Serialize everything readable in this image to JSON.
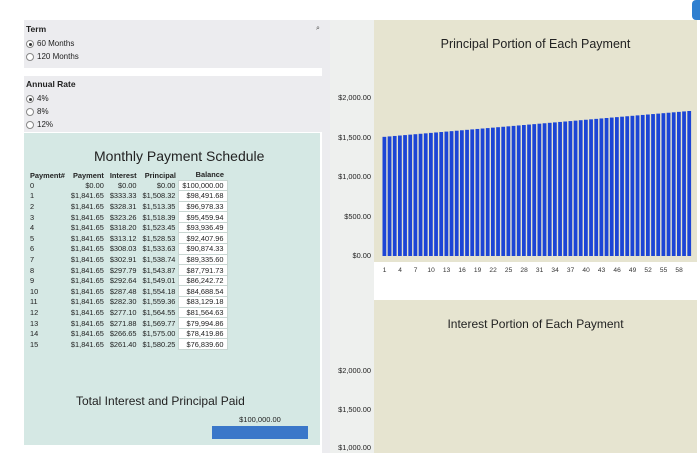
{
  "term": {
    "label": "Term",
    "options": [
      {
        "label": "60 Months",
        "selected": true
      },
      {
        "label": "120 Months",
        "selected": false
      }
    ]
  },
  "rate": {
    "label": "Annual Rate",
    "options": [
      {
        "label": "4%",
        "selected": true
      },
      {
        "label": "8%",
        "selected": false
      },
      {
        "label": "12%",
        "selected": false
      }
    ]
  },
  "schedule": {
    "title": "Monthly Payment Schedule",
    "columns": [
      "Payment#",
      "Payment",
      "Interest",
      "Principal",
      "Balance"
    ],
    "rows": [
      [
        "0",
        "$0.00",
        "$0.00",
        "$0.00",
        "$100,000.00"
      ],
      [
        "1",
        "$1,841.65",
        "$333.33",
        "$1,508.32",
        "$98,491.68"
      ],
      [
        "2",
        "$1,841.65",
        "$328.31",
        "$1,513.35",
        "$96,978.33"
      ],
      [
        "3",
        "$1,841.65",
        "$323.26",
        "$1,518.39",
        "$95,459.94"
      ],
      [
        "4",
        "$1,841.65",
        "$318.20",
        "$1,523.45",
        "$93,936.49"
      ],
      [
        "5",
        "$1,841.65",
        "$313.12",
        "$1,528.53",
        "$92,407.96"
      ],
      [
        "6",
        "$1,841.65",
        "$308.03",
        "$1,533.63",
        "$90,874.33"
      ],
      [
        "7",
        "$1,841.65",
        "$302.91",
        "$1,538.74",
        "$89,335.60"
      ],
      [
        "8",
        "$1,841.65",
        "$297.79",
        "$1,543.87",
        "$87,791.73"
      ],
      [
        "9",
        "$1,841.65",
        "$292.64",
        "$1,549.01",
        "$86,242.72"
      ],
      [
        "10",
        "$1,841.65",
        "$287.48",
        "$1,554.18",
        "$84,688.54"
      ],
      [
        "11",
        "$1,841.65",
        "$282.30",
        "$1,559.36",
        "$83,129.18"
      ],
      [
        "12",
        "$1,841.65",
        "$277.10",
        "$1,564.55",
        "$81,564.63"
      ],
      [
        "13",
        "$1,841.65",
        "$271.88",
        "$1,569.77",
        "$79,994.86"
      ],
      [
        "14",
        "$1,841.65",
        "$266.65",
        "$1,575.00",
        "$78,419.86"
      ],
      [
        "15",
        "$1,841.65",
        "$261.40",
        "$1,580.25",
        "$76,839.60"
      ]
    ]
  },
  "totals": {
    "title": "Total Interest and Principal Paid",
    "value": "$100,000.00"
  },
  "chart_data": [
    {
      "type": "bar",
      "title": "Principal Portion of Each Payment",
      "xlabel": "",
      "ylabel": "",
      "ylim": [
        0,
        2000
      ],
      "yticks": [
        "$0.00",
        "$500.00",
        "$1,000.00",
        "$1,500.00",
        "$2,000.00"
      ],
      "xticks": [
        "1",
        "4",
        "7",
        "10",
        "13",
        "16",
        "19",
        "22",
        "25",
        "28",
        "31",
        "34",
        "37",
        "40",
        "43",
        "46",
        "49",
        "52",
        "55",
        "58"
      ],
      "x_range": [
        1,
        60
      ],
      "values_first": 1508.32,
      "values_last": 1835.53,
      "color": "#1c45d6",
      "grid": false
    },
    {
      "type": "bar",
      "title": "Interest Portion of Each Payment",
      "xlabel": "",
      "ylabel": "",
      "yticks": [
        "$2,000.00",
        "$1,500.00",
        "$1,000.00"
      ],
      "grid": false
    }
  ],
  "colors": {
    "panel": "#ececef",
    "schedule_bg": "#d5e8e4",
    "chart_bg": "#e6e4d0",
    "bar": "#1c45d6",
    "total_bar": "#3a77c9"
  },
  "menu_icon": "dropdown-arrow-icon"
}
